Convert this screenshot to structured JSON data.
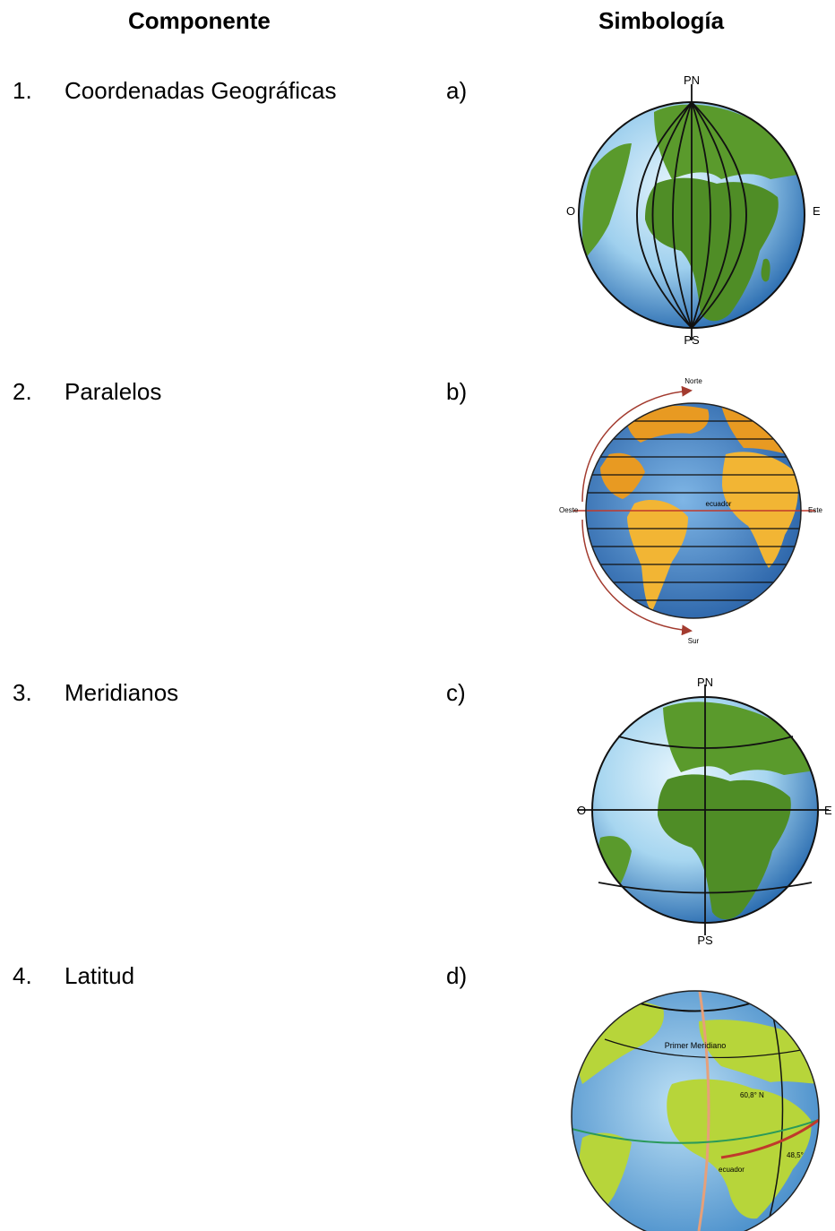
{
  "headers": {
    "component": "Componente",
    "symbology": "Simbología"
  },
  "items": [
    {
      "number": "1.",
      "label": "Coordenadas Geográficas",
      "letter": "a)"
    },
    {
      "number": "2.",
      "label": "Paralelos",
      "letter": "b)"
    },
    {
      "number": "3.",
      "label": "Meridianos",
      "letter": "c)"
    },
    {
      "number": "4.",
      "label": "Latitud",
      "letter": "d)"
    }
  ],
  "globes": {
    "a": {
      "north": "PN",
      "south": "PS",
      "west": "O",
      "east": "E"
    },
    "b": {
      "north": "Norte",
      "south": "Sur",
      "west": "Oeste",
      "east": "Este",
      "equator": "ecuador"
    },
    "c": {
      "north": "PN",
      "south": "PS",
      "west": "O",
      "east": "E"
    },
    "d": {
      "prime_meridian": "Primer Meridiano",
      "lat_label": "60,8° N",
      "equator": "ecuador",
      "lat_label2": "48,5°"
    }
  },
  "colors": {
    "ocean_light": "#cfe9f7",
    "ocean_dark": "#2a6cb0",
    "land_green": "#5a9a2c",
    "land_yellow": "#f2b534",
    "land_yellowgreen": "#b7d53a",
    "arrow_red": "#a33b2f"
  }
}
